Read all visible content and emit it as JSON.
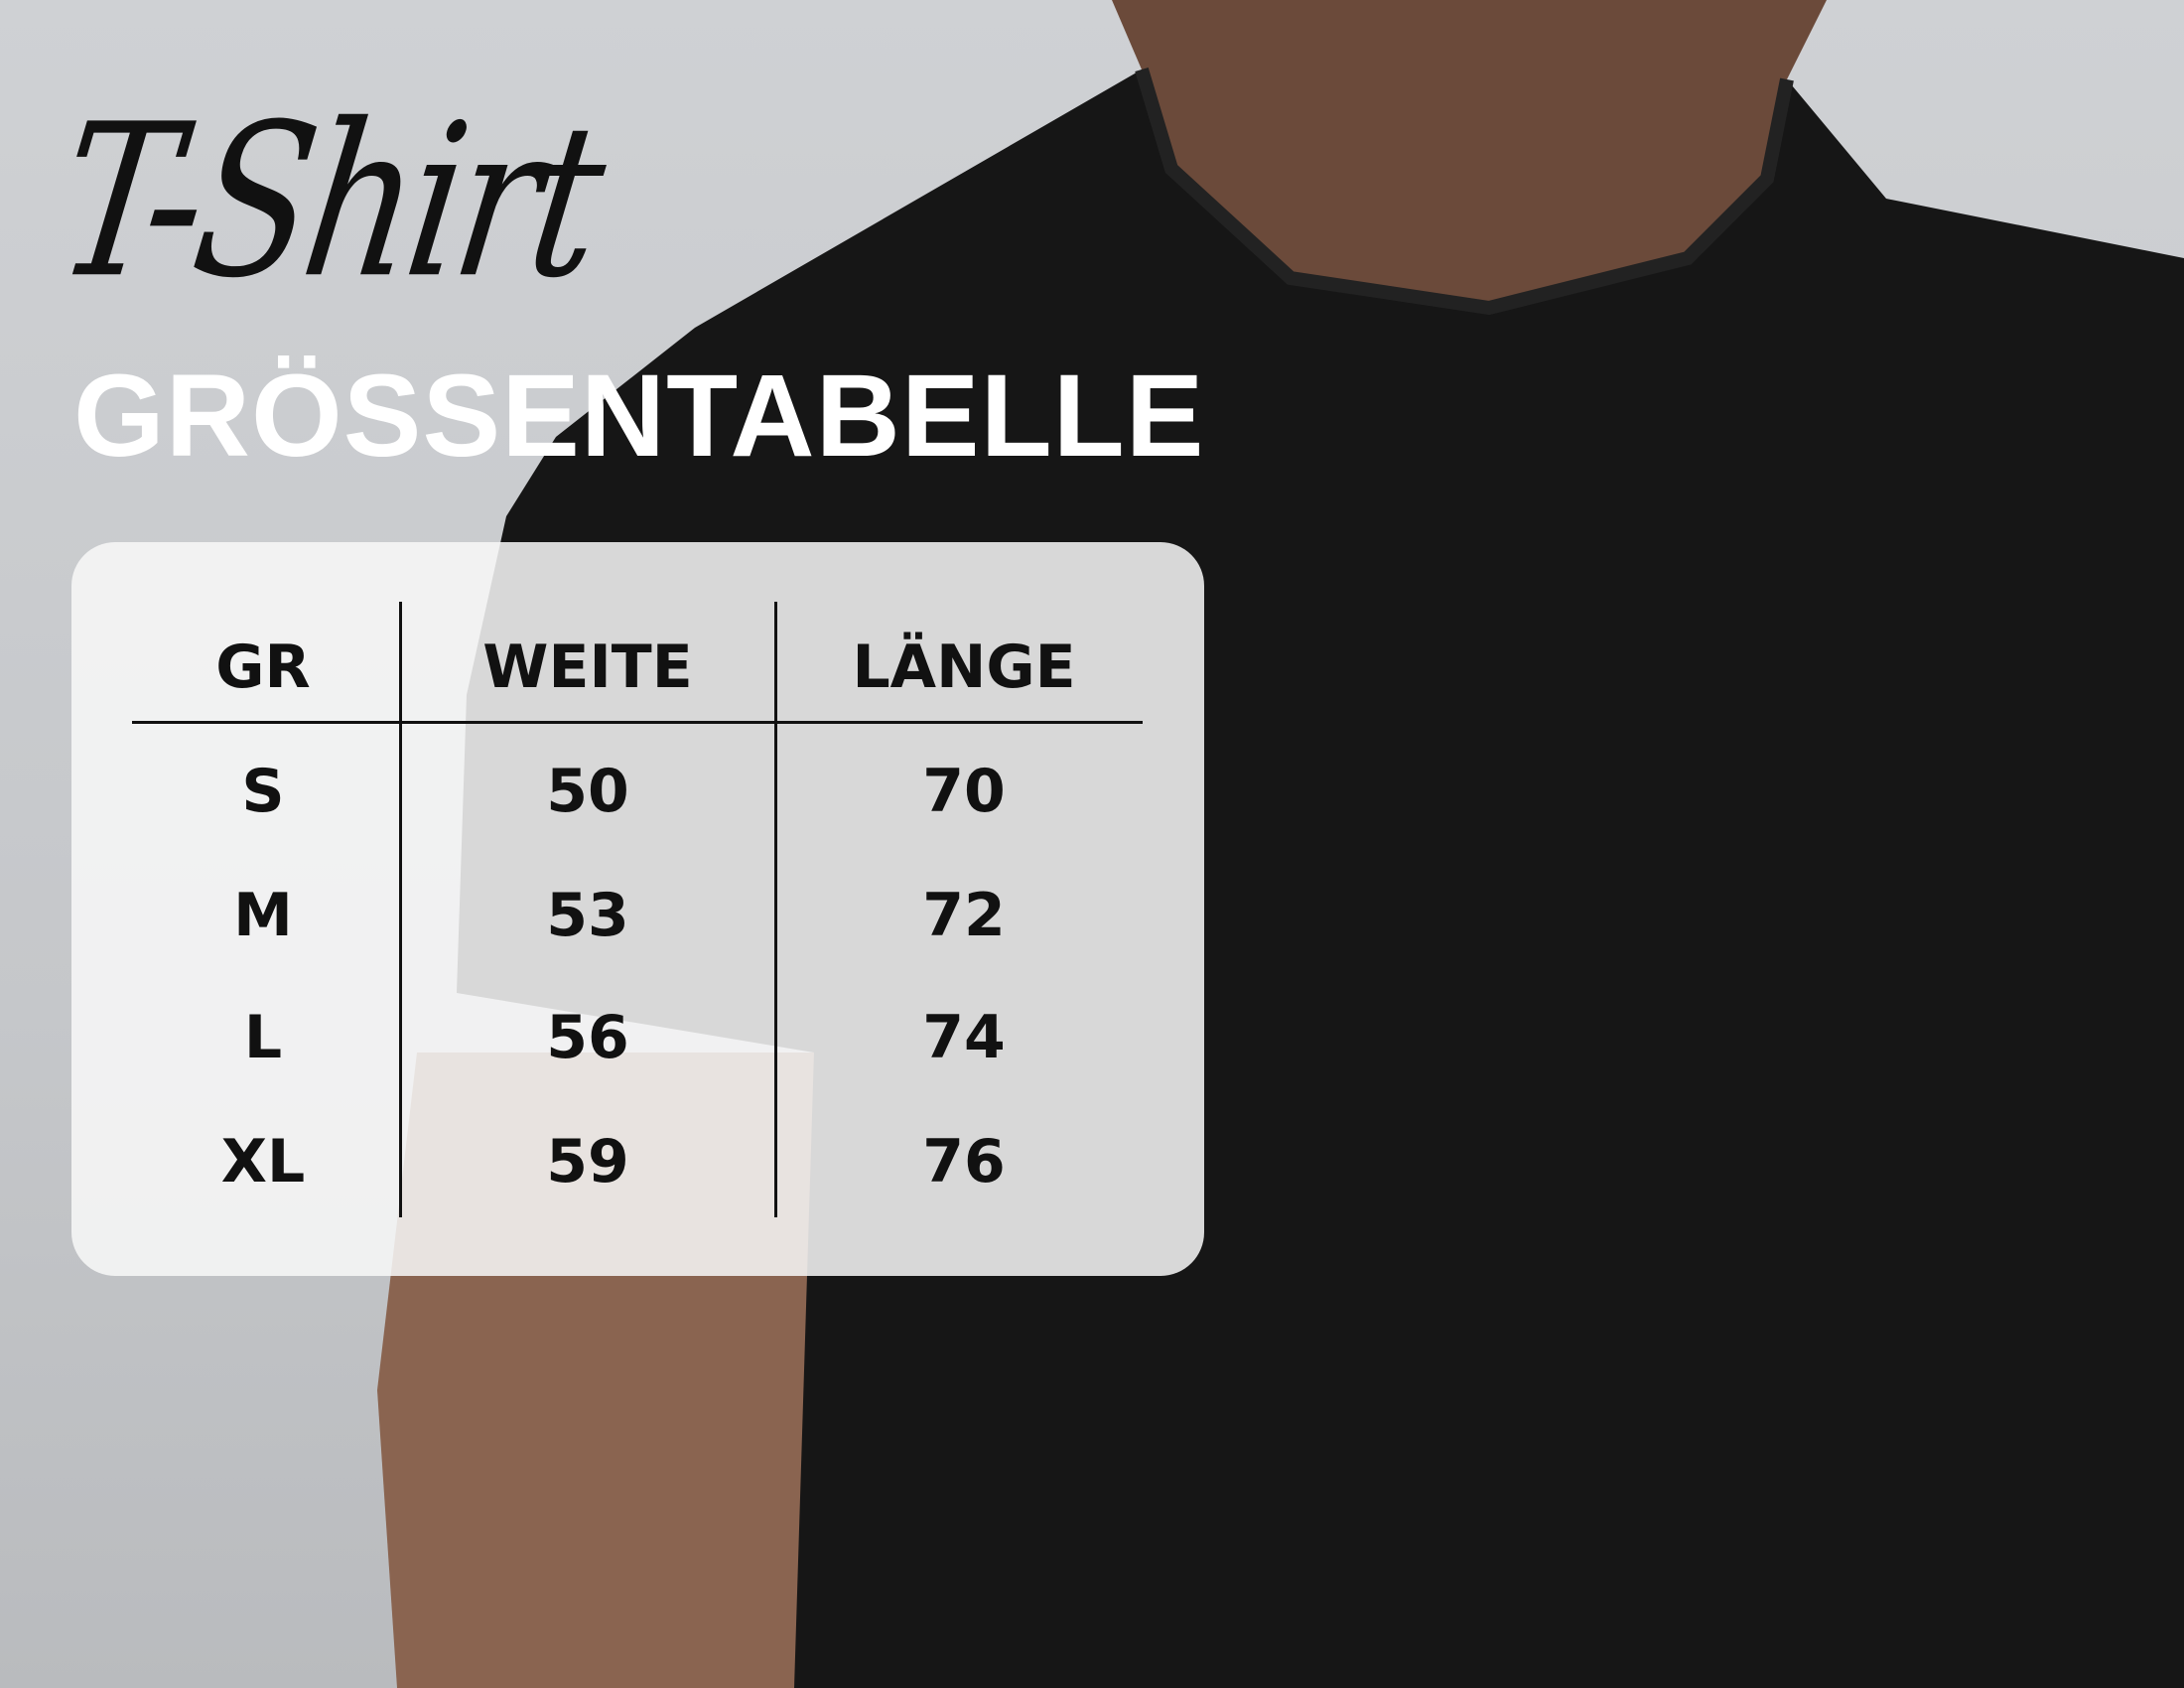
{
  "script_title": "T-Shirt",
  "title": "GRÖSSENTABELLE",
  "table": {
    "headers": [
      "GR",
      "WEITE",
      "LÄNGE"
    ],
    "rows": [
      [
        "S",
        "50",
        "70"
      ],
      [
        "M",
        "53",
        "72"
      ],
      [
        "L",
        "56",
        "74"
      ],
      [
        "XL",
        "59",
        "76"
      ]
    ]
  },
  "colors": {
    "shirt": "#161616",
    "background": "#c8cacd",
    "panel": "#f5f5f5"
  }
}
